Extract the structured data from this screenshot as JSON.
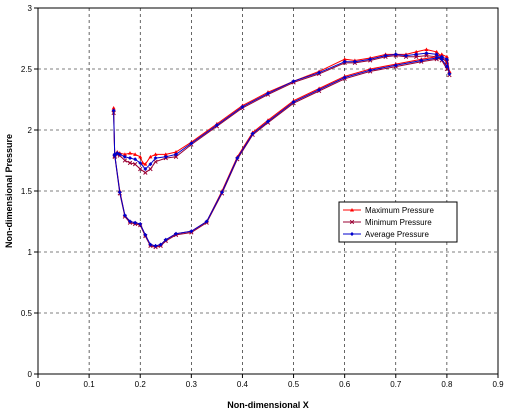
{
  "chart_data": {
    "type": "line",
    "xlabel": "Non-dimensional X",
    "ylabel": "Non-dimensional Pressure",
    "xlim": [
      0,
      0.9
    ],
    "ylim": [
      0,
      3
    ],
    "x_ticks": [
      "0",
      "0.1",
      "0.2",
      "0.3",
      "0.4",
      "0.5",
      "0.6",
      "0.7",
      "0.8",
      "0.9"
    ],
    "y_ticks": [
      "0",
      "0.5",
      "1",
      "1.5",
      "2",
      "2.5",
      "3"
    ],
    "grid": true,
    "legend_position": "right",
    "series": [
      {
        "name": "Maximum Pressure",
        "color": "#ff0000",
        "marker": "triangle",
        "upper": [
          [
            0.15,
            1.8
          ],
          [
            0.155,
            1.82
          ],
          [
            0.16,
            1.81
          ],
          [
            0.17,
            1.8
          ],
          [
            0.18,
            1.81
          ],
          [
            0.19,
            1.8
          ],
          [
            0.2,
            1.78
          ],
          [
            0.205,
            1.73
          ],
          [
            0.21,
            1.72
          ],
          [
            0.22,
            1.78
          ],
          [
            0.23,
            1.8
          ],
          [
            0.25,
            1.8
          ],
          [
            0.27,
            1.82
          ],
          [
            0.3,
            1.9
          ],
          [
            0.35,
            2.05
          ],
          [
            0.4,
            2.2
          ],
          [
            0.45,
            2.31
          ],
          [
            0.5,
            2.4
          ],
          [
            0.55,
            2.48
          ],
          [
            0.6,
            2.58
          ],
          [
            0.62,
            2.57
          ],
          [
            0.65,
            2.59
          ],
          [
            0.68,
            2.62
          ],
          [
            0.7,
            2.62
          ],
          [
            0.72,
            2.62
          ],
          [
            0.74,
            2.64
          ],
          [
            0.76,
            2.66
          ],
          [
            0.78,
            2.64
          ],
          [
            0.79,
            2.6
          ],
          [
            0.8,
            2.55
          ]
        ],
        "lower": [
          [
            0.148,
            2.18
          ],
          [
            0.15,
            1.8
          ],
          [
            0.16,
            1.5
          ],
          [
            0.17,
            1.3
          ],
          [
            0.18,
            1.25
          ],
          [
            0.19,
            1.24
          ],
          [
            0.2,
            1.23
          ],
          [
            0.21,
            1.14
          ],
          [
            0.22,
            1.06
          ],
          [
            0.23,
            1.05
          ],
          [
            0.24,
            1.06
          ],
          [
            0.25,
            1.1
          ],
          [
            0.27,
            1.15
          ],
          [
            0.3,
            1.17
          ],
          [
            0.33,
            1.25
          ],
          [
            0.36,
            1.5
          ],
          [
            0.39,
            1.78
          ],
          [
            0.42,
            1.98
          ],
          [
            0.45,
            2.08
          ],
          [
            0.5,
            2.24
          ],
          [
            0.55,
            2.34
          ],
          [
            0.6,
            2.44
          ],
          [
            0.65,
            2.5
          ],
          [
            0.7,
            2.54
          ],
          [
            0.75,
            2.58
          ],
          [
            0.78,
            2.6
          ],
          [
            0.79,
            2.62
          ],
          [
            0.8,
            2.6
          ],
          [
            0.805,
            2.48
          ]
        ]
      },
      {
        "name": "Minimum Pressure",
        "color": "#990033",
        "marker": "cross",
        "upper": [
          [
            0.15,
            1.78
          ],
          [
            0.155,
            1.8
          ],
          [
            0.16,
            1.79
          ],
          [
            0.17,
            1.75
          ],
          [
            0.18,
            1.73
          ],
          [
            0.19,
            1.72
          ],
          [
            0.2,
            1.68
          ],
          [
            0.21,
            1.65
          ],
          [
            0.22,
            1.68
          ],
          [
            0.23,
            1.74
          ],
          [
            0.25,
            1.77
          ],
          [
            0.27,
            1.78
          ],
          [
            0.3,
            1.88
          ],
          [
            0.35,
            2.03
          ],
          [
            0.4,
            2.18
          ],
          [
            0.45,
            2.29
          ],
          [
            0.5,
            2.39
          ],
          [
            0.55,
            2.46
          ],
          [
            0.6,
            2.55
          ],
          [
            0.62,
            2.55
          ],
          [
            0.65,
            2.57
          ],
          [
            0.68,
            2.6
          ],
          [
            0.7,
            2.61
          ],
          [
            0.72,
            2.6
          ],
          [
            0.74,
            2.6
          ],
          [
            0.76,
            2.61
          ],
          [
            0.78,
            2.6
          ],
          [
            0.79,
            2.57
          ],
          [
            0.8,
            2.5
          ]
        ],
        "lower": [
          [
            0.148,
            2.14
          ],
          [
            0.15,
            1.79
          ],
          [
            0.16,
            1.48
          ],
          [
            0.17,
            1.29
          ],
          [
            0.18,
            1.24
          ],
          [
            0.19,
            1.23
          ],
          [
            0.2,
            1.22
          ],
          [
            0.21,
            1.13
          ],
          [
            0.22,
            1.05
          ],
          [
            0.23,
            1.04
          ],
          [
            0.24,
            1.05
          ],
          [
            0.25,
            1.09
          ],
          [
            0.27,
            1.14
          ],
          [
            0.3,
            1.16
          ],
          [
            0.33,
            1.24
          ],
          [
            0.36,
            1.48
          ],
          [
            0.39,
            1.76
          ],
          [
            0.42,
            1.96
          ],
          [
            0.45,
            2.06
          ],
          [
            0.5,
            2.22
          ],
          [
            0.55,
            2.32
          ],
          [
            0.6,
            2.42
          ],
          [
            0.65,
            2.48
          ],
          [
            0.7,
            2.52
          ],
          [
            0.75,
            2.56
          ],
          [
            0.78,
            2.58
          ],
          [
            0.79,
            2.59
          ],
          [
            0.8,
            2.56
          ],
          [
            0.805,
            2.45
          ]
        ]
      },
      {
        "name": "Average Pressure",
        "color": "#0000cc",
        "marker": "diamond",
        "upper": [
          [
            0.15,
            1.79
          ],
          [
            0.155,
            1.81
          ],
          [
            0.16,
            1.8
          ],
          [
            0.17,
            1.78
          ],
          [
            0.18,
            1.77
          ],
          [
            0.19,
            1.76
          ],
          [
            0.2,
            1.73
          ],
          [
            0.21,
            1.68
          ],
          [
            0.22,
            1.72
          ],
          [
            0.23,
            1.77
          ],
          [
            0.25,
            1.78
          ],
          [
            0.27,
            1.8
          ],
          [
            0.3,
            1.89
          ],
          [
            0.35,
            2.04
          ],
          [
            0.4,
            2.19
          ],
          [
            0.45,
            2.3
          ],
          [
            0.5,
            2.4
          ],
          [
            0.55,
            2.47
          ],
          [
            0.6,
            2.56
          ],
          [
            0.62,
            2.56
          ],
          [
            0.65,
            2.58
          ],
          [
            0.68,
            2.61
          ],
          [
            0.7,
            2.62
          ],
          [
            0.72,
            2.61
          ],
          [
            0.74,
            2.62
          ],
          [
            0.76,
            2.63
          ],
          [
            0.78,
            2.62
          ],
          [
            0.79,
            2.58
          ],
          [
            0.8,
            2.52
          ]
        ],
        "lower": [
          [
            0.148,
            2.16
          ],
          [
            0.15,
            1.8
          ],
          [
            0.16,
            1.49
          ],
          [
            0.17,
            1.3
          ],
          [
            0.18,
            1.25
          ],
          [
            0.19,
            1.24
          ],
          [
            0.2,
            1.23
          ],
          [
            0.21,
            1.14
          ],
          [
            0.22,
            1.06
          ],
          [
            0.23,
            1.05
          ],
          [
            0.24,
            1.06
          ],
          [
            0.25,
            1.1
          ],
          [
            0.27,
            1.15
          ],
          [
            0.3,
            1.17
          ],
          [
            0.33,
            1.25
          ],
          [
            0.36,
            1.49
          ],
          [
            0.39,
            1.77
          ],
          [
            0.42,
            1.97
          ],
          [
            0.45,
            2.07
          ],
          [
            0.5,
            2.23
          ],
          [
            0.55,
            2.33
          ],
          [
            0.6,
            2.43
          ],
          [
            0.65,
            2.49
          ],
          [
            0.7,
            2.53
          ],
          [
            0.75,
            2.57
          ],
          [
            0.78,
            2.59
          ],
          [
            0.79,
            2.6
          ],
          [
            0.8,
            2.58
          ],
          [
            0.805,
            2.46
          ]
        ]
      }
    ]
  }
}
